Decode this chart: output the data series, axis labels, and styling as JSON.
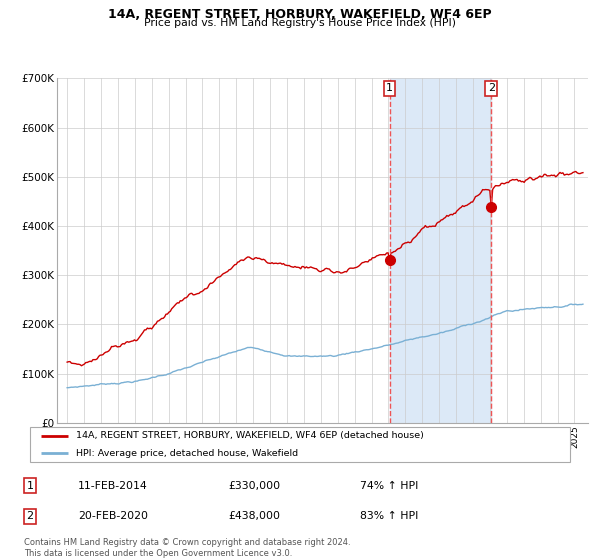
{
  "title": "14A, REGENT STREET, HORBURY, WAKEFIELD, WF4 6EP",
  "subtitle": "Price paid vs. HM Land Registry's House Price Index (HPI)",
  "marker1_value": 330000,
  "marker2_value": 438000,
  "shade_color": "#dce9f7",
  "red_line_color": "#cc0000",
  "blue_line_color": "#7ab0d4",
  "dashed_line_color": "#ee5555",
  "grid_color": "#cccccc",
  "legend_label_red": "14A, REGENT STREET, HORBURY, WAKEFIELD, WF4 6EP (detached house)",
  "legend_label_blue": "HPI: Average price, detached house, Wakefield",
  "table_row1": [
    "1",
    "11-FEB-2014",
    "£330,000",
    "74% ↑ HPI"
  ],
  "table_row2": [
    "2",
    "20-FEB-2020",
    "£438,000",
    "83% ↑ HPI"
  ],
  "footer": "Contains HM Land Registry data © Crown copyright and database right 2024.\nThis data is licensed under the Open Government Licence v3.0.",
  "ylim": [
    0,
    700000
  ],
  "yticks": [
    0,
    100000,
    200000,
    300000,
    400000,
    500000,
    600000,
    700000
  ],
  "ytick_labels": [
    "£0",
    "£100K",
    "£200K",
    "£300K",
    "£400K",
    "£500K",
    "£600K",
    "£700K"
  ],
  "xstart": 1995,
  "xend": 2025,
  "marker1_year": 2014.1,
  "marker2_year": 2020.1
}
